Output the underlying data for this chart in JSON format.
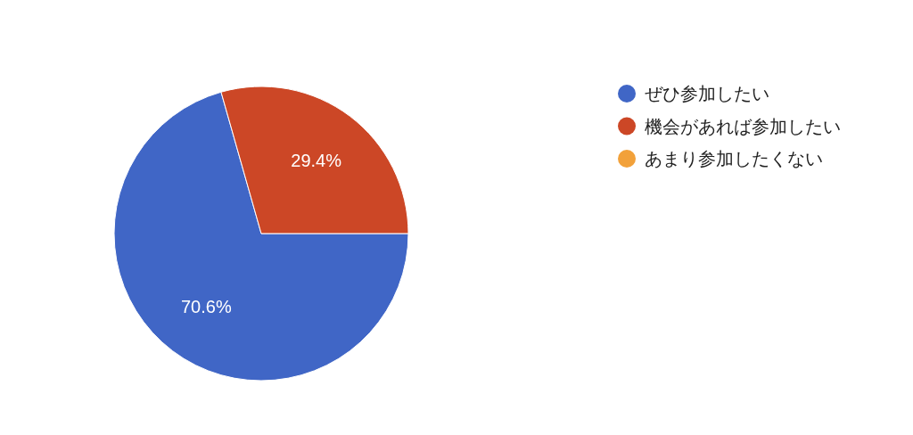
{
  "chart_data": {
    "type": "pie",
    "categories": [
      "ぜひ参加したい",
      "機会があれば参加したい",
      "あまり参加したくない"
    ],
    "values": [
      70.6,
      29.4,
      0
    ],
    "colors": [
      "#4066c6",
      "#cc4726",
      "#f2a13a"
    ],
    "value_labels": [
      "70.6%",
      "29.4%",
      null
    ],
    "legend": "right"
  }
}
